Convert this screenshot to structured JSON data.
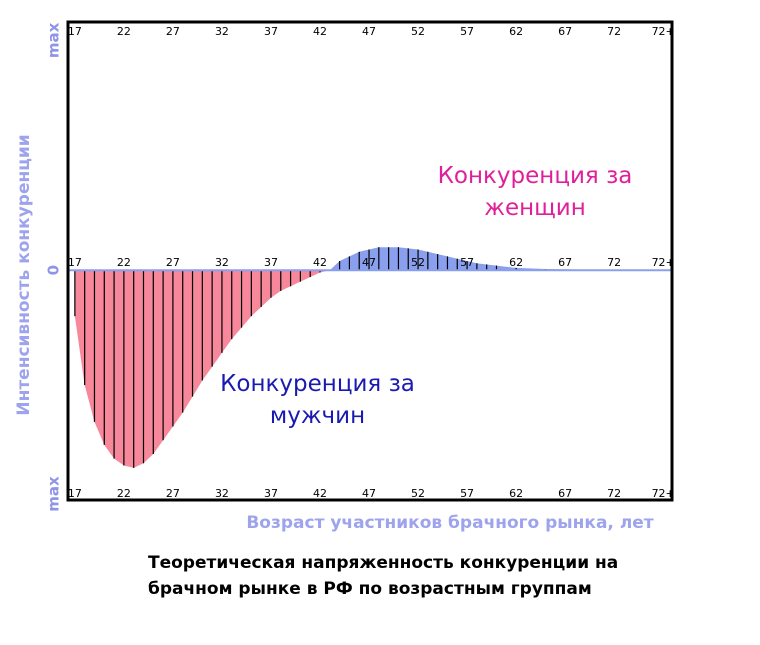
{
  "chart_data": {
    "type": "area",
    "title": "Теоретическая напряженность конкуренции на брачном рынке в РФ по возрастным группам",
    "xlabel": "Возраст участников брачного рынка, лет",
    "ylabel": "Интенсивность конкуренции",
    "xlim": [
      16.3,
      77.9
    ],
    "xticks": [
      17,
      22,
      27,
      32,
      37,
      42,
      47,
      52,
      57,
      62,
      67,
      72,
      {
        "value": 77,
        "label": "72+"
      }
    ],
    "ylim": [
      -1,
      1.08
    ],
    "yticks": [
      {
        "value": 1,
        "label": "max"
      },
      0,
      {
        "value": -1,
        "label": "max"
      }
    ],
    "series": [
      {
        "name": "Конкуренция за женщин",
        "color": "#f7879a",
        "x": [
          17,
          18,
          19,
          20,
          21,
          22,
          23,
          24,
          25,
          26,
          27,
          28,
          29,
          30,
          31,
          32,
          33,
          34,
          35,
          36,
          37,
          38,
          39,
          40,
          41,
          42,
          43
        ],
        "values": [
          -0.2,
          -0.5,
          -0.66,
          -0.76,
          -0.82,
          -0.85,
          -0.86,
          -0.84,
          -0.8,
          -0.74,
          -0.68,
          -0.62,
          -0.55,
          -0.48,
          -0.42,
          -0.36,
          -0.3,
          -0.25,
          -0.2,
          -0.16,
          -0.12,
          -0.09,
          -0.07,
          -0.05,
          -0.03,
          -0.01,
          0
        ]
      },
      {
        "name": "Конкуренция за мужчин",
        "color": "#8aa0ee",
        "x": [
          43,
          44,
          45,
          46,
          47,
          48,
          49,
          50,
          51,
          52,
          53,
          54,
          55,
          56,
          57,
          58,
          59,
          60,
          62,
          65,
          70,
          77.9
        ],
        "values": [
          0,
          0.04,
          0.06,
          0.08,
          0.09,
          0.1,
          0.1,
          0.1,
          0.095,
          0.09,
          0.08,
          0.07,
          0.06,
          0.05,
          0.04,
          0.03,
          0.025,
          0.02,
          0.01,
          0.005,
          0.002,
          0
        ]
      }
    ]
  }
}
